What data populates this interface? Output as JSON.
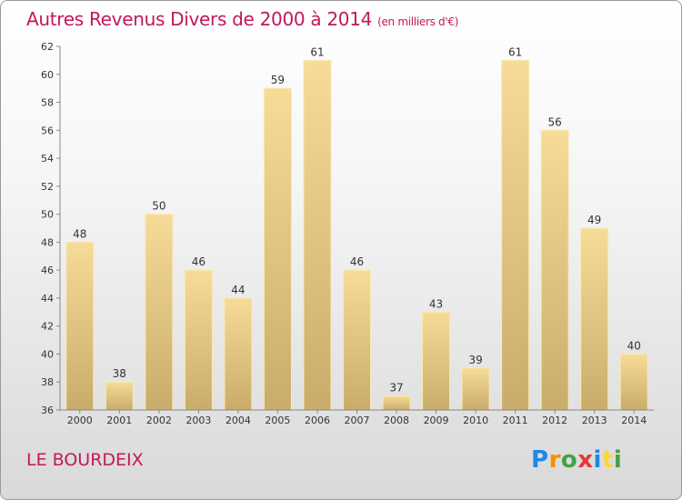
{
  "header": {
    "title": "Autres Revenus Divers de 2000 à 2014",
    "subtitle": "(en milliers d'€)"
  },
  "footer": {
    "place": "LE BOURDEIX",
    "logo_letters": [
      "P",
      "r",
      "o",
      "x",
      "i",
      "t",
      "i"
    ]
  },
  "colors": {
    "title": "#c2185b",
    "bar_light": "#f6dc97",
    "bar_dark": "#c9ac6b",
    "axis": "#888888"
  },
  "chart_data": {
    "type": "bar",
    "title": "Autres Revenus Divers de 2000 à 2014",
    "subtitle": "(en milliers d'€)",
    "categories": [
      "2000",
      "2001",
      "2002",
      "2003",
      "2004",
      "2005",
      "2006",
      "2007",
      "2008",
      "2009",
      "2010",
      "2011",
      "2012",
      "2013",
      "2014"
    ],
    "values": [
      48,
      38,
      50,
      46,
      44,
      59,
      61,
      46,
      37,
      43,
      39,
      61,
      56,
      49,
      40
    ],
    "ylim": [
      36,
      62
    ],
    "yticks": [
      36,
      38,
      40,
      42,
      44,
      46,
      48,
      50,
      52,
      54,
      56,
      58,
      60,
      62
    ],
    "grid": false,
    "data_labels": true
  }
}
